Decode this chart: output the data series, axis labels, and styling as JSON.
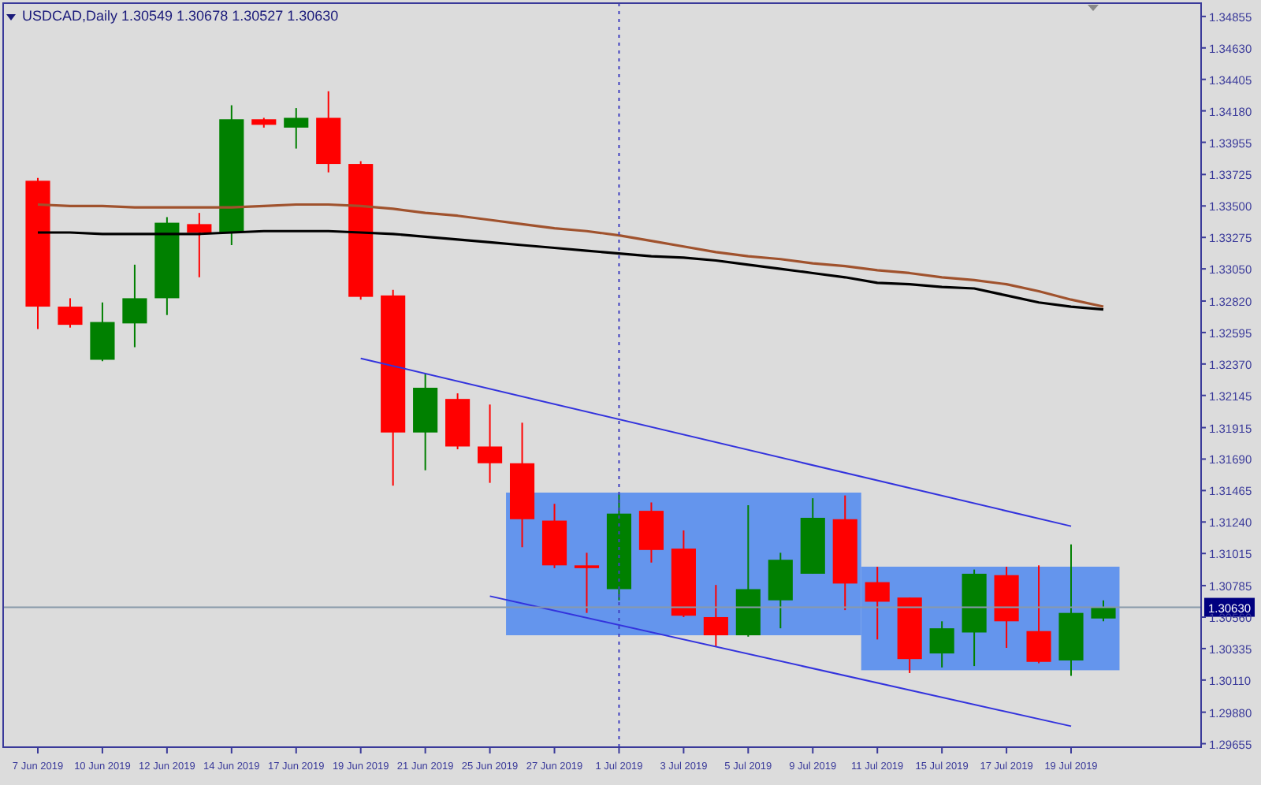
{
  "chart_data": {
    "type": "candlestick",
    "title": "USDCAD,Daily  1.30549 1.30678 1.30527 1.30630",
    "categories": [
      "7 Jun 2019",
      null,
      "10 Jun 2019",
      null,
      "12 Jun 2019",
      null,
      "14 Jun 2019",
      null,
      "17 Jun 2019",
      null,
      "19 Jun 2019",
      null,
      "21 Jun 2019",
      null,
      "25 Jun 2019",
      null,
      "27 Jun 2019",
      null,
      "1 Jul 2019",
      null,
      "3 Jul 2019",
      null,
      "5 Jul 2019",
      null,
      "9 Jul 2019",
      null,
      "11 Jul 2019",
      null,
      "15 Jul 2019",
      null,
      "17 Jul 2019",
      null,
      "19 Jul 2019",
      null
    ],
    "ohlc": [
      [
        1.3368,
        1.337,
        1.3262,
        1.3278
      ],
      [
        1.3278,
        1.3284,
        1.3263,
        1.3265
      ],
      [
        1.324,
        1.3281,
        1.3239,
        1.3267
      ],
      [
        1.3266,
        1.3308,
        1.3249,
        1.3284
      ],
      [
        1.3284,
        1.3342,
        1.3272,
        1.3338
      ],
      [
        1.3337,
        1.3345,
        1.3299,
        1.3331
      ],
      [
        1.3331,
        1.3422,
        1.3322,
        1.3412
      ],
      [
        1.3412,
        1.3413,
        1.3406,
        1.3408
      ],
      [
        1.3406,
        1.342,
        1.3391,
        1.3413
      ],
      [
        1.3413,
        1.3432,
        1.3374,
        1.338
      ],
      [
        1.338,
        1.3382,
        1.3283,
        1.3285
      ],
      [
        1.3286,
        1.329,
        1.315,
        1.3188
      ],
      [
        1.3188,
        1.323,
        1.3161,
        1.322
      ],
      [
        1.3212,
        1.3216,
        1.3176,
        1.3178
      ],
      [
        1.3178,
        1.3208,
        1.3152,
        1.3166
      ],
      [
        1.3166,
        1.3195,
        1.3106,
        1.3126
      ],
      [
        1.3125,
        1.3137,
        1.3091,
        1.3093
      ],
      [
        1.3093,
        1.3102,
        1.3059,
        1.3091
      ],
      [
        1.3076,
        1.3144,
        1.3068,
        1.313
      ],
      [
        1.3132,
        1.3138,
        1.3095,
        1.3104
      ],
      [
        1.3105,
        1.3118,
        1.3056,
        1.3057
      ],
      [
        1.3056,
        1.3079,
        1.3035,
        1.3043
      ],
      [
        1.3043,
        1.3136,
        1.3042,
        1.3076
      ],
      [
        1.3068,
        1.3102,
        1.3048,
        1.3097
      ],
      [
        1.3087,
        1.3141,
        1.3087,
        1.3127
      ],
      [
        1.3126,
        1.3143,
        1.3061,
        1.308
      ],
      [
        1.3081,
        1.3092,
        1.304,
        1.3067
      ],
      [
        1.307,
        1.307,
        1.3016,
        1.3026
      ],
      [
        1.303,
        1.3053,
        1.302,
        1.3048
      ],
      [
        1.3045,
        1.309,
        1.3021,
        1.3087
      ],
      [
        1.3086,
        1.3092,
        1.3034,
        1.3053
      ],
      [
        1.3046,
        1.3093,
        1.3023,
        1.3024
      ],
      [
        1.3025,
        1.3108,
        1.3014,
        1.3059
      ],
      [
        1.3055,
        1.3068,
        1.3053,
        1.3063
      ]
    ],
    "colors": [
      "#ff0000",
      "#ff0000",
      "#008000",
      "#008000",
      "#008000",
      "#ff0000",
      "#008000",
      "#ff0000",
      "#008000",
      "#ff0000",
      "#ff0000",
      "#ff0000",
      "#008000",
      "#ff0000",
      "#ff0000",
      "#ff0000",
      "#ff0000",
      "#ff0000",
      "#008000",
      "#ff0000",
      "#ff0000",
      "#ff0000",
      "#008000",
      "#008000",
      "#008000",
      "#ff0000",
      "#ff0000",
      "#ff0000",
      "#008000",
      "#008000",
      "#ff0000",
      "#ff0000",
      "#008000",
      "#008000"
    ],
    "series": [
      {
        "type": "line",
        "color": "#a0522d",
        "values": [
          1.3351,
          1.335,
          1.335,
          1.3349,
          1.3349,
          1.3349,
          1.3349,
          1.335,
          1.3351,
          1.3351,
          1.335,
          1.3348,
          1.3345,
          1.3343,
          1.334,
          1.3337,
          1.3334,
          1.3332,
          1.3329,
          1.3325,
          1.3321,
          1.3317,
          1.3314,
          1.3312,
          1.3309,
          1.3307,
          1.3304,
          1.3302,
          1.3299,
          1.3297,
          1.3294,
          1.3289,
          1.3283,
          1.3278
        ]
      },
      {
        "type": "line",
        "color": "#000000",
        "values": [
          1.3331,
          1.3331,
          1.333,
          1.333,
          1.333,
          1.333,
          1.3331,
          1.3332,
          1.3332,
          1.3332,
          1.3331,
          1.333,
          1.3328,
          1.3326,
          1.3324,
          1.3322,
          1.332,
          1.3318,
          1.3316,
          1.3314,
          1.3313,
          1.3311,
          1.3308,
          1.3305,
          1.3302,
          1.3299,
          1.3295,
          1.3294,
          1.3292,
          1.3291,
          1.3286,
          1.3281,
          1.3278,
          1.3276
        ]
      },
      {
        "type": "line",
        "color": "#3333dd",
        "x": [
          "19 Jun 2019",
          "19 Jul 2019"
        ],
        "values": [
          1.3241,
          1.3121
        ]
      },
      {
        "type": "line",
        "color": "#3333dd",
        "x": [
          "25 Jun 2019",
          "19 Jul 2019"
        ],
        "values": [
          1.3071,
          1.2978
        ]
      }
    ],
    "ylim": [
      1.2963,
      1.3495
    ],
    "yticks": [
      1.34855,
      {
        "value": 1.3463,
        "label": "1.34630"
      },
      1.34405,
      {
        "value": 1.3418,
        "label": "1.34180"
      },
      1.33955,
      1.33725,
      {
        "value": 1.335,
        "label": "1.33500"
      },
      1.33275,
      {
        "value": 1.3305,
        "label": "1.33050"
      },
      {
        "value": 1.3282,
        "label": "1.32820"
      },
      1.32595,
      {
        "value": 1.3237,
        "label": "1.32370"
      },
      1.32145,
      1.31915,
      {
        "value": 1.3169,
        "label": "1.31690"
      },
      1.31465,
      {
        "value": 1.3124,
        "label": "1.31240"
      },
      1.31015,
      1.30785,
      {
        "value": 1.3056,
        "label": "1.30560"
      },
      1.30335,
      {
        "value": 1.3011,
        "label": "1.30110"
      },
      {
        "value": 1.2988,
        "label": "1.29880"
      },
      1.29655
    ],
    "ref_lines": [
      {
        "axis": "x",
        "value": "1 Jul 2019",
        "color": "#4040c0",
        "line_style": "dotted"
      },
      {
        "axis": "y",
        "value": 1.3063,
        "label": "1.30630",
        "color": "#8899aa"
      }
    ]
  }
}
